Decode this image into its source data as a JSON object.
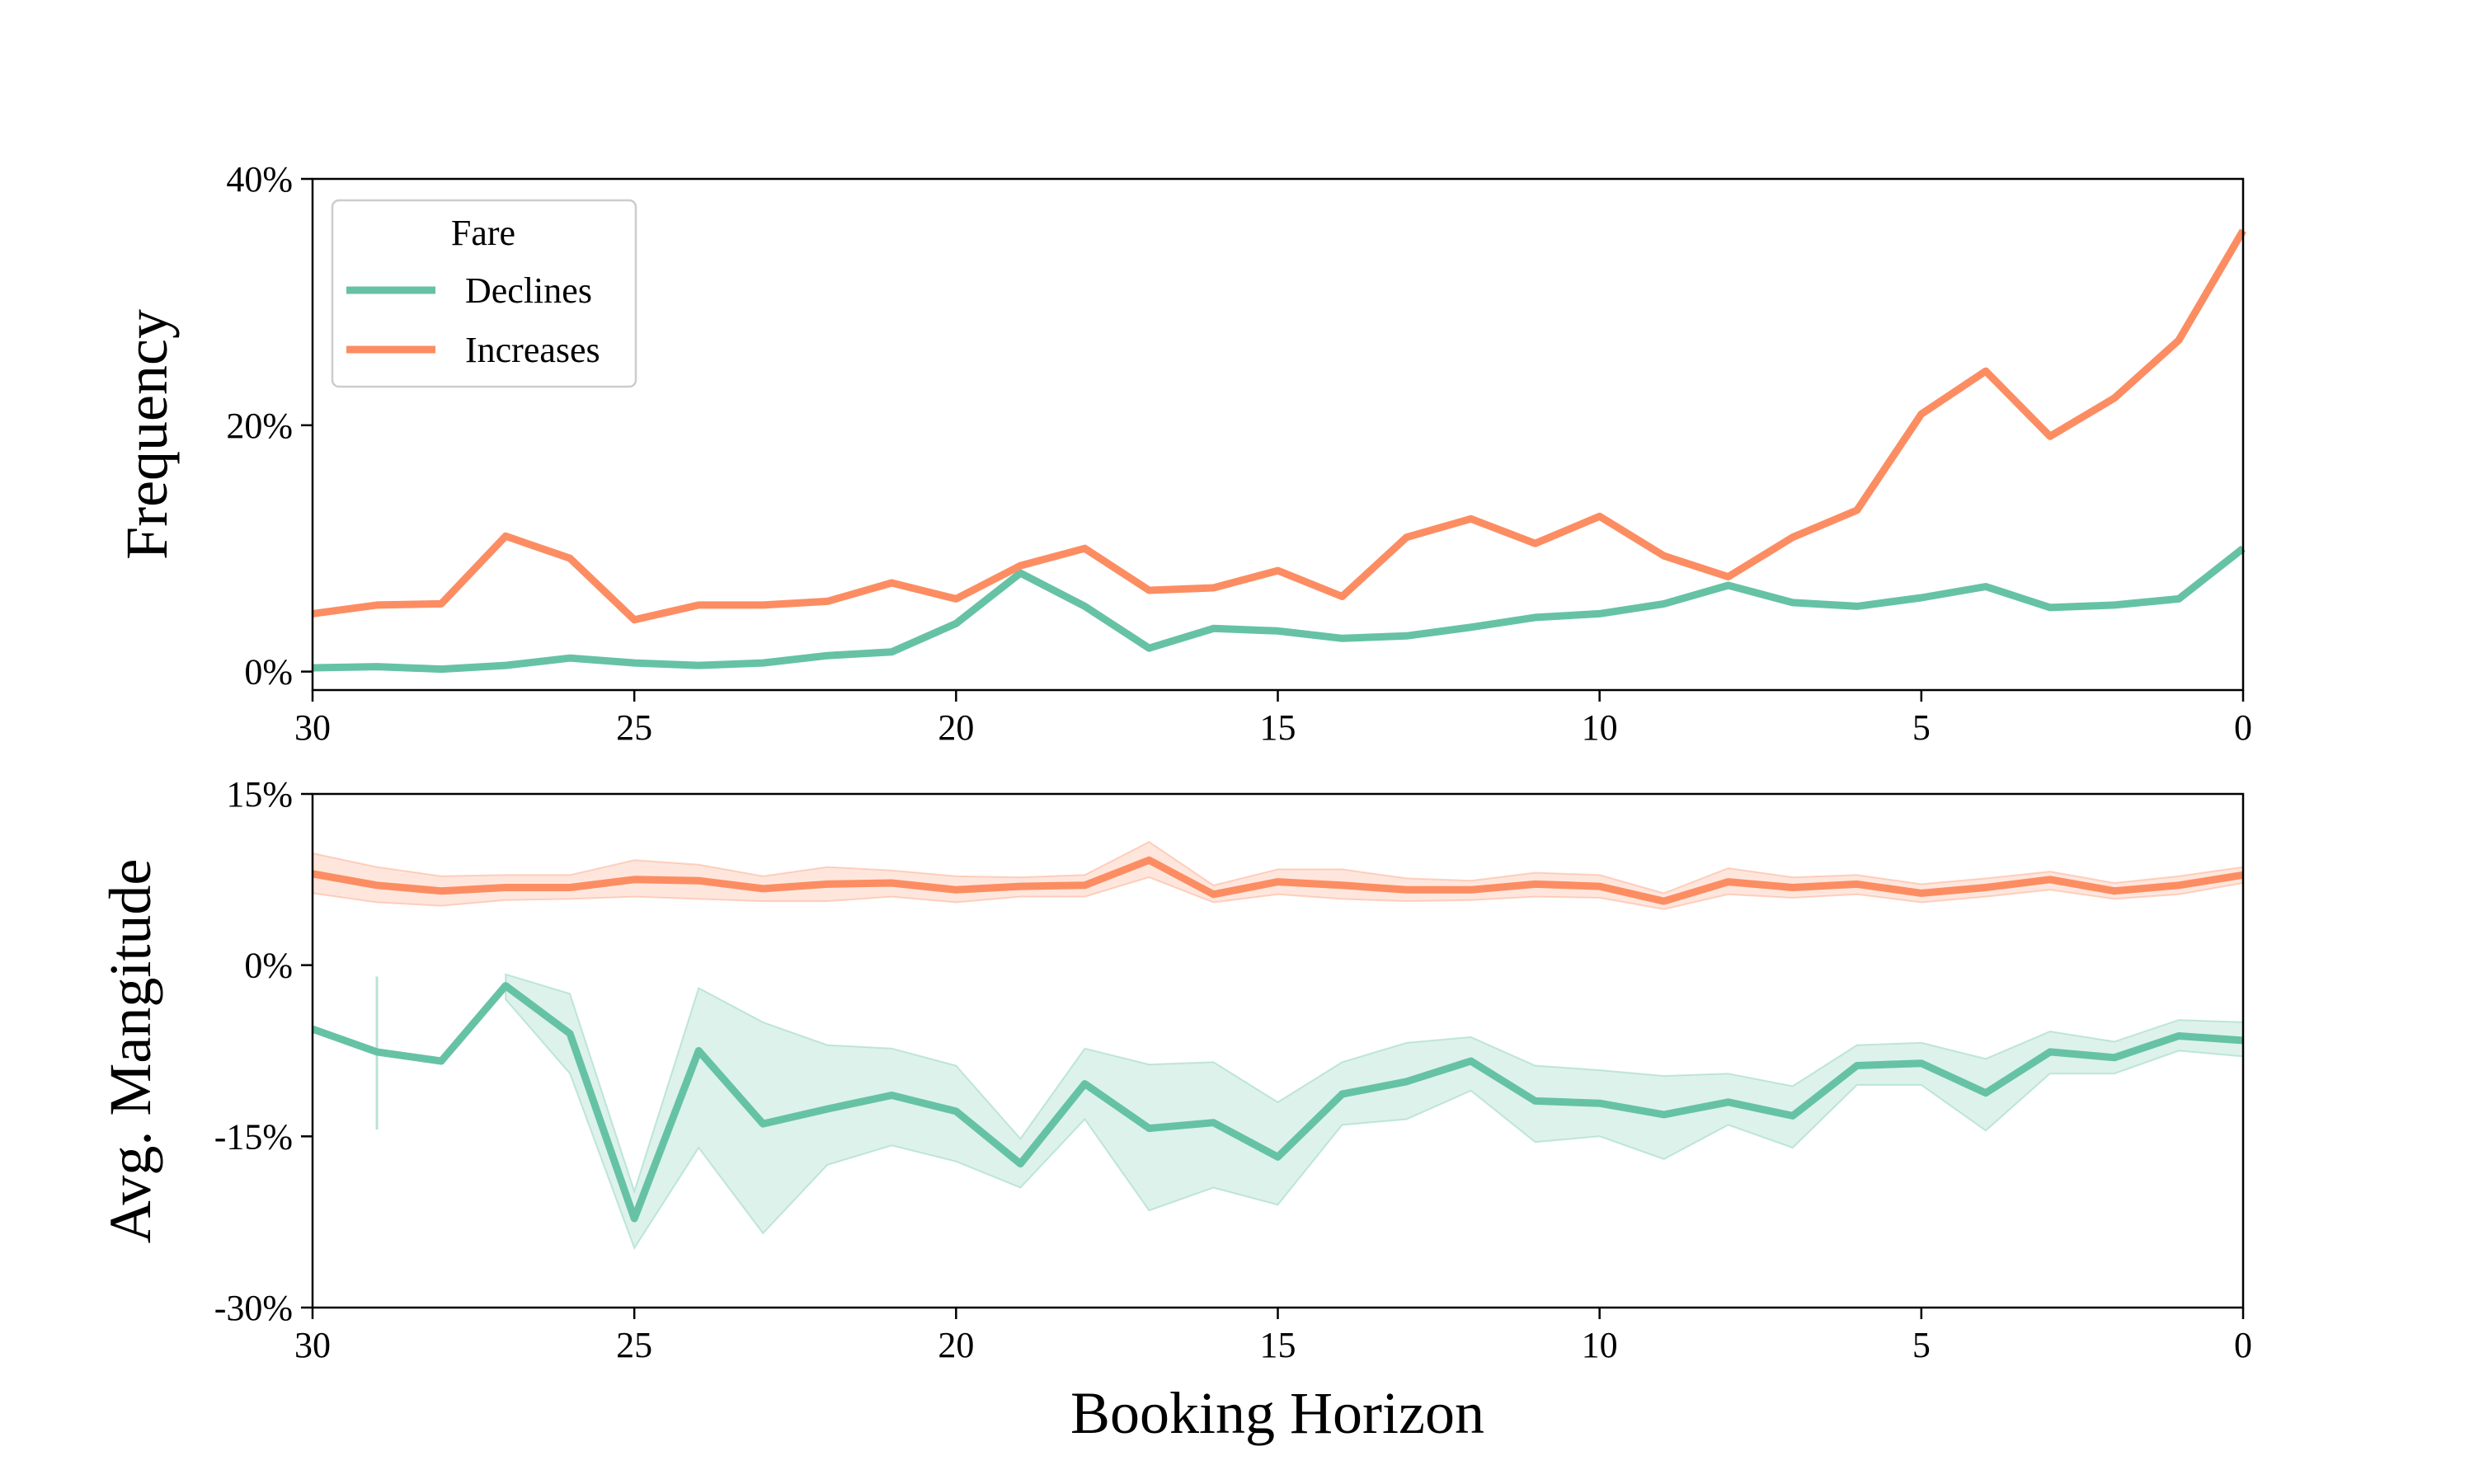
{
  "colors": {
    "declines": "#66c2a5",
    "increases": "#fc8d62",
    "axis": "#000000",
    "background": "#ffffff"
  },
  "legend": {
    "title": "Fare",
    "placement": "upper-left"
  },
  "chart_data": [
    {
      "type": "line",
      "title": "",
      "xlabel": "",
      "ylabel": "Frequency",
      "xlim": [
        30,
        0
      ],
      "ylim": [
        -1.5,
        40
      ],
      "y_ticks": [
        {
          "value": 0,
          "label": "0%"
        },
        {
          "value": 20,
          "label": "20%"
        },
        {
          "value": 40,
          "label": "40%"
        }
      ],
      "x_ticks": [
        {
          "value": 30,
          "label": "30"
        },
        {
          "value": 25,
          "label": "25"
        },
        {
          "value": 20,
          "label": "20"
        },
        {
          "value": 15,
          "label": "15"
        },
        {
          "value": 10,
          "label": "10"
        },
        {
          "value": 5,
          "label": "5"
        },
        {
          "value": 0,
          "label": "0"
        }
      ],
      "grid": false,
      "legend_placement": "upper-left",
      "x": [
        30,
        29,
        28,
        27,
        26,
        25,
        24,
        23,
        22,
        21,
        20,
        19,
        18,
        17,
        16,
        15,
        14,
        13,
        12,
        11,
        10,
        9,
        8,
        7,
        6,
        5,
        4,
        3,
        2,
        1,
        0
      ],
      "series": [
        {
          "name": "Declines",
          "key": "declines",
          "values": [
            0.3,
            0.4,
            0.2,
            0.5,
            1.1,
            0.7,
            0.5,
            0.7,
            1.3,
            1.6,
            3.9,
            8.0,
            5.3,
            1.9,
            3.5,
            3.3,
            2.7,
            2.9,
            3.6,
            4.4,
            4.7,
            5.5,
            7.0,
            5.6,
            5.3,
            6.0,
            6.9,
            5.2,
            5.4,
            5.9,
            10.0
          ]
        },
        {
          "name": "Increases",
          "key": "increases",
          "values": [
            4.7,
            5.4,
            5.5,
            11.0,
            9.2,
            4.2,
            5.4,
            5.4,
            5.7,
            7.2,
            5.9,
            8.6,
            10.0,
            6.6,
            6.8,
            8.2,
            6.1,
            10.9,
            12.4,
            10.4,
            12.6,
            9.4,
            7.7,
            10.9,
            13.1,
            20.9,
            24.4,
            19.1,
            22.2,
            26.9,
            35.8
          ]
        }
      ]
    },
    {
      "type": "area",
      "title": "",
      "xlabel": "Booking Horizon",
      "ylabel": "Avg. Mangitude",
      "xlim": [
        30,
        0
      ],
      "ylim": [
        -30,
        15
      ],
      "y_ticks": [
        {
          "value": 15,
          "label": "15%"
        },
        {
          "value": 0,
          "label": "0%"
        },
        {
          "value": -15,
          "label": "-15%"
        },
        {
          "value": -30,
          "label": "-30%"
        }
      ],
      "x_ticks": [
        {
          "value": 30,
          "label": "30"
        },
        {
          "value": 25,
          "label": "25"
        },
        {
          "value": 20,
          "label": "20"
        },
        {
          "value": 15,
          "label": "15"
        },
        {
          "value": 10,
          "label": "10"
        },
        {
          "value": 5,
          "label": "5"
        },
        {
          "value": 0,
          "label": "0"
        }
      ],
      "grid": false,
      "x": [
        30,
        29,
        28,
        27,
        26,
        25,
        24,
        23,
        22,
        21,
        20,
        19,
        18,
        17,
        16,
        15,
        14,
        13,
        12,
        11,
        10,
        9,
        8,
        7,
        6,
        5,
        4,
        3,
        2,
        1,
        0
      ],
      "series": [
        {
          "name": "Declines",
          "key": "declines",
          "values": [
            -5.6,
            -7.6,
            -8.4,
            -1.8,
            -6.0,
            -22.2,
            -7.5,
            -13.9,
            -12.6,
            -11.4,
            -12.8,
            -17.4,
            -10.4,
            -14.3,
            -13.8,
            -16.8,
            -11.3,
            -10.2,
            -8.4,
            -11.9,
            -12.1,
            -13.1,
            -12.0,
            -13.2,
            -8.8,
            -8.6,
            -11.2,
            -7.6,
            -8.1,
            -6.2,
            -6.6
          ],
          "band_lower": [
            null,
            null,
            null,
            -3.0,
            -9.5,
            -24.8,
            -16.0,
            -23.5,
            -17.5,
            -15.8,
            -17.2,
            -19.5,
            -13.5,
            -21.5,
            -19.5,
            -21.0,
            -14.0,
            -13.5,
            -11.0,
            -15.5,
            -15.0,
            -17.0,
            -14.0,
            -16.0,
            -10.5,
            -10.5,
            -14.5,
            -9.5,
            -9.5,
            -7.5,
            -8.0
          ],
          "band_upper": [
            null,
            null,
            null,
            -0.8,
            -2.5,
            -19.8,
            -2.0,
            -5.0,
            -7.0,
            -7.3,
            -8.8,
            -15.2,
            -7.3,
            -8.7,
            -8.5,
            -12.0,
            -8.5,
            -6.8,
            -6.3,
            -8.8,
            -9.2,
            -9.7,
            -9.5,
            -10.6,
            -7.0,
            -6.8,
            -8.2,
            -5.8,
            -6.7,
            -4.8,
            -5.0
          ],
          "bar_x": 29,
          "bar_range": [
            -14.4,
            -1.0
          ]
        },
        {
          "name": "Increases",
          "key": "increases",
          "values": [
            8.0,
            7.0,
            6.5,
            6.8,
            6.8,
            7.5,
            7.4,
            6.7,
            7.1,
            7.2,
            6.6,
            6.9,
            7.0,
            9.2,
            6.2,
            7.3,
            7.0,
            6.6,
            6.6,
            7.1,
            6.9,
            5.6,
            7.3,
            6.8,
            7.1,
            6.3,
            6.8,
            7.5,
            6.5,
            7.0,
            7.9
          ],
          "band_lower": [
            6.3,
            5.5,
            5.2,
            5.7,
            5.8,
            6.0,
            5.8,
            5.6,
            5.6,
            6.0,
            5.5,
            6.0,
            6.0,
            7.7,
            5.5,
            6.2,
            5.8,
            5.6,
            5.7,
            6.0,
            5.9,
            4.9,
            6.2,
            5.9,
            6.2,
            5.5,
            6.0,
            6.6,
            5.8,
            6.2,
            7.2
          ],
          "band_upper": [
            9.8,
            8.6,
            7.8,
            7.9,
            7.9,
            9.2,
            8.8,
            7.8,
            8.6,
            8.3,
            7.8,
            7.7,
            7.9,
            10.8,
            7.0,
            8.4,
            8.4,
            7.6,
            7.4,
            8.1,
            7.9,
            6.3,
            8.5,
            7.7,
            7.9,
            7.1,
            7.6,
            8.2,
            7.2,
            7.8,
            8.6
          ]
        }
      ]
    }
  ]
}
